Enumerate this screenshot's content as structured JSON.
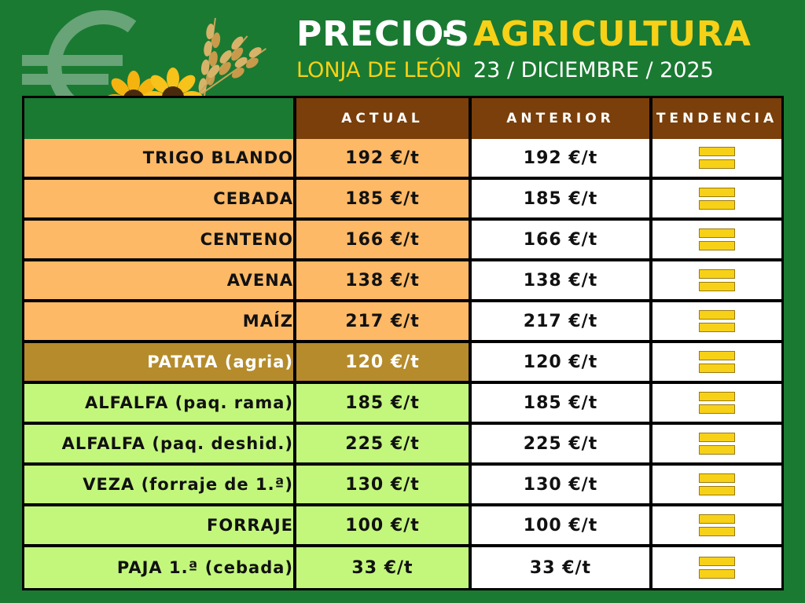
{
  "header": {
    "title": "PRECIOS",
    "separator": "·",
    "category": "AGRICULTURA",
    "market": "LONJA DE LEÓN",
    "date": "23 / DICIEMBRE / 2025"
  },
  "table": {
    "columns": [
      "ACTUAL",
      "ANTERIOR",
      "TENDENCIA"
    ],
    "rows": [
      {
        "product": "TRIGO BLANDO",
        "actual": "192 €/t",
        "anterior": "192 €/t",
        "trend": "equal"
      },
      {
        "product": "CEBADA",
        "actual": "185 €/t",
        "anterior": "185 €/t",
        "trend": "equal"
      },
      {
        "product": "CENTENO",
        "actual": "166 €/t",
        "anterior": "166 €/t",
        "trend": "equal"
      },
      {
        "product": "AVENA",
        "actual": "138 €/t",
        "anterior": "138 €/t",
        "trend": "equal"
      },
      {
        "product": "MAÍZ",
        "actual": "217 €/t",
        "anterior": "217 €/t",
        "trend": "equal"
      },
      {
        "product": "PATATA (agria)",
        "actual": "120 €/t",
        "anterior": "120 €/t",
        "trend": "equal"
      },
      {
        "product": "ALFALFA (paq. rama)",
        "actual": "185 €/t",
        "anterior": "185 €/t",
        "trend": "equal"
      },
      {
        "product": "ALFALFA (paq. deshid.)",
        "actual": "225 €/t",
        "anterior": "225 €/t",
        "trend": "equal"
      },
      {
        "product": "VEZA (forraje de 1.ª)",
        "actual": "130 €/t",
        "anterior": "130 €/t",
        "trend": "equal"
      },
      {
        "product": "FORRAJE",
        "actual": "100 €/t",
        "anterior": "100 €/t",
        "trend": "equal"
      },
      {
        "product": "PAJA 1.ª (cebada)",
        "actual": "33 €/t",
        "anterior": "33 €/t",
        "trend": "equal"
      }
    ]
  },
  "colors": {
    "background": "#1a7a32",
    "header_cell": "#7a3f0a",
    "cereal_row": "#fdb966",
    "patata_row": "#b58b2c",
    "forraje_row": "#c3f77c",
    "accent_yellow": "#f7d117",
    "trend_equal": "#f7d117"
  },
  "icons": {
    "logo": "euro-sign-icon",
    "decoration": [
      "sunflower-icon",
      "wheat-icon"
    ],
    "trend": "equal-trend-icon"
  }
}
